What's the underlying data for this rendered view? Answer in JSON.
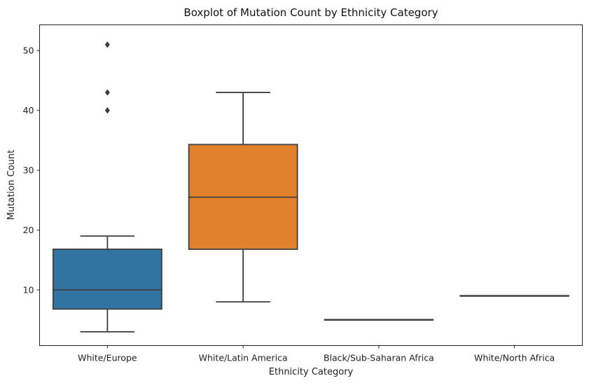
{
  "chart_data": {
    "type": "boxplot",
    "title": "Boxplot of Mutation Count by Ethnicity Category",
    "xlabel": "Ethnicity Category",
    "ylabel": "Mutation Count",
    "ylim": [
      0.7,
      54.3
    ],
    "yticks": [
      10,
      20,
      30,
      40,
      50
    ],
    "grid": false,
    "categories": [
      "White/Europe",
      "White/Latin America",
      "Black/Sub-Saharan Africa",
      "White/North Africa"
    ],
    "boxes": [
      {
        "category": "White/Europe",
        "whisker_low": 3,
        "q1": 6.8,
        "median": 10,
        "q3": 16.8,
        "whisker_high": 19,
        "outliers": [
          40,
          43,
          51
        ],
        "color": "#3274a1"
      },
      {
        "category": "White/Latin America",
        "whisker_low": 8,
        "q1": 16.8,
        "median": 25.5,
        "q3": 34.3,
        "whisker_high": 43,
        "outliers": [],
        "color": "#e1812c"
      },
      {
        "category": "Black/Sub-Saharan Africa",
        "whisker_low": 5,
        "q1": 5,
        "median": 5,
        "q3": 5,
        "whisker_high": 5,
        "outliers": [],
        "color": "#3a923a"
      },
      {
        "category": "White/North Africa",
        "whisker_low": 9,
        "q1": 9,
        "median": 9,
        "q3": 9,
        "whisker_high": 9,
        "outliers": [],
        "color": "#c03d3e"
      }
    ],
    "line_color": "#3f3f3f"
  }
}
